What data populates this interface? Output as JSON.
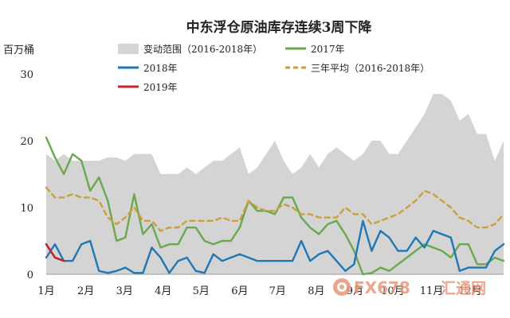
{
  "chart_data": {
    "type": "line",
    "title": "中东浮仓原油库存连续3周下降",
    "ylabel": "百万桶",
    "ylim": [
      0,
      30
    ],
    "yticks": [
      0,
      10,
      20,
      30
    ],
    "xlim": [
      1,
      53
    ],
    "x_tick_labels": [
      "1月",
      "2月",
      "3月",
      "4月",
      "5月",
      "6月",
      "7月",
      "8月",
      "9月",
      "10月",
      "11月",
      "12月"
    ],
    "x_tick_weeks": [
      1,
      5.5,
      9.9,
      14.3,
      18.6,
      23,
      27.3,
      31.7,
      36.1,
      40.4,
      44.8,
      49.2
    ],
    "band": {
      "name": "变动范围（2016-2018年）",
      "color": "#d4d4d4",
      "upper": [
        18,
        17,
        18,
        17,
        17,
        17,
        17,
        17.5,
        17.5,
        17,
        18,
        18,
        18,
        15,
        15,
        15,
        16,
        15,
        16,
        17,
        17,
        18,
        19,
        15,
        16,
        18,
        20,
        17,
        15,
        16,
        18,
        16,
        18,
        19,
        18,
        17,
        18,
        20,
        20,
        18,
        18,
        20,
        22,
        24,
        27,
        27,
        26,
        23,
        24,
        21,
        21,
        17,
        20
      ],
      "lower": [
        0,
        0,
        0,
        0,
        0,
        0,
        0,
        0,
        0,
        0,
        0,
        0,
        0,
        0,
        0,
        0,
        0,
        0,
        0,
        0,
        0,
        0,
        0,
        0,
        0,
        0,
        0,
        0,
        0,
        0,
        0,
        0,
        0,
        0,
        0,
        0,
        0,
        0,
        0,
        0,
        0,
        0,
        0,
        0,
        0,
        0,
        0,
        0,
        0,
        0,
        0,
        0,
        0
      ]
    },
    "series": [
      {
        "name": "2017年",
        "color": "#6aa84f",
        "style": "solid",
        "values": [
          20.5,
          17.5,
          15,
          18,
          17,
          12.5,
          14.5,
          11,
          5,
          5.5,
          12,
          6,
          7.5,
          4,
          4.5,
          4.5,
          7,
          7,
          5,
          4.5,
          5,
          5,
          7,
          11,
          9.5,
          9.5,
          9,
          11.5,
          11.5,
          8.5,
          7,
          6,
          7.5,
          8,
          6,
          3.5,
          0,
          0.2,
          1,
          0.5,
          1.5,
          2.5,
          3.5,
          4.5,
          4,
          3.5,
          2.5,
          4.5,
          4.5,
          1.5,
          1.5,
          2.5,
          2
        ]
      },
      {
        "name": "三年平均（2016-2018年）",
        "color": "#c9a03d",
        "style": "dashed",
        "values": [
          13,
          11.5,
          11.5,
          12,
          11.5,
          11.5,
          11,
          8.5,
          7.5,
          8.5,
          10,
          8,
          8,
          6.5,
          7,
          7,
          8,
          8,
          8,
          8,
          8.5,
          8,
          8,
          11,
          10,
          9.5,
          9.5,
          10.5,
          10,
          9,
          9,
          8.5,
          8.5,
          8.5,
          10,
          9,
          9,
          7.5,
          8,
          8.5,
          9,
          10,
          11,
          12.5,
          12,
          11,
          10,
          8.5,
          8,
          7,
          7,
          7.5,
          9
        ]
      },
      {
        "name": "2018年",
        "color": "#1f77b4",
        "style": "solid",
        "values": [
          2.5,
          4.5,
          2,
          2,
          4.5,
          5,
          0.5,
          0.2,
          0.5,
          1,
          0.2,
          0.2,
          4,
          2.5,
          0.2,
          2,
          2.5,
          0.5,
          0.2,
          3,
          2,
          2.5,
          3,
          2.5,
          2,
          2,
          2,
          2,
          2,
          5,
          2,
          3,
          3.5,
          2,
          0.5,
          1.5,
          8,
          3.5,
          6.5,
          5.5,
          3.5,
          3.5,
          5.5,
          4,
          6.5,
          6,
          5.5,
          0.5,
          1,
          1,
          1,
          3.5,
          4.5
        ]
      },
      {
        "name": "2019年",
        "color": "#c0272d",
        "style": "solid",
        "values": [
          4.5,
          2.5,
          2
        ]
      }
    ],
    "legend": "top",
    "grid": false
  },
  "watermark": {
    "brand_latin": "FX678",
    "brand_cn": "汇通网",
    "color": "#e8967a"
  }
}
